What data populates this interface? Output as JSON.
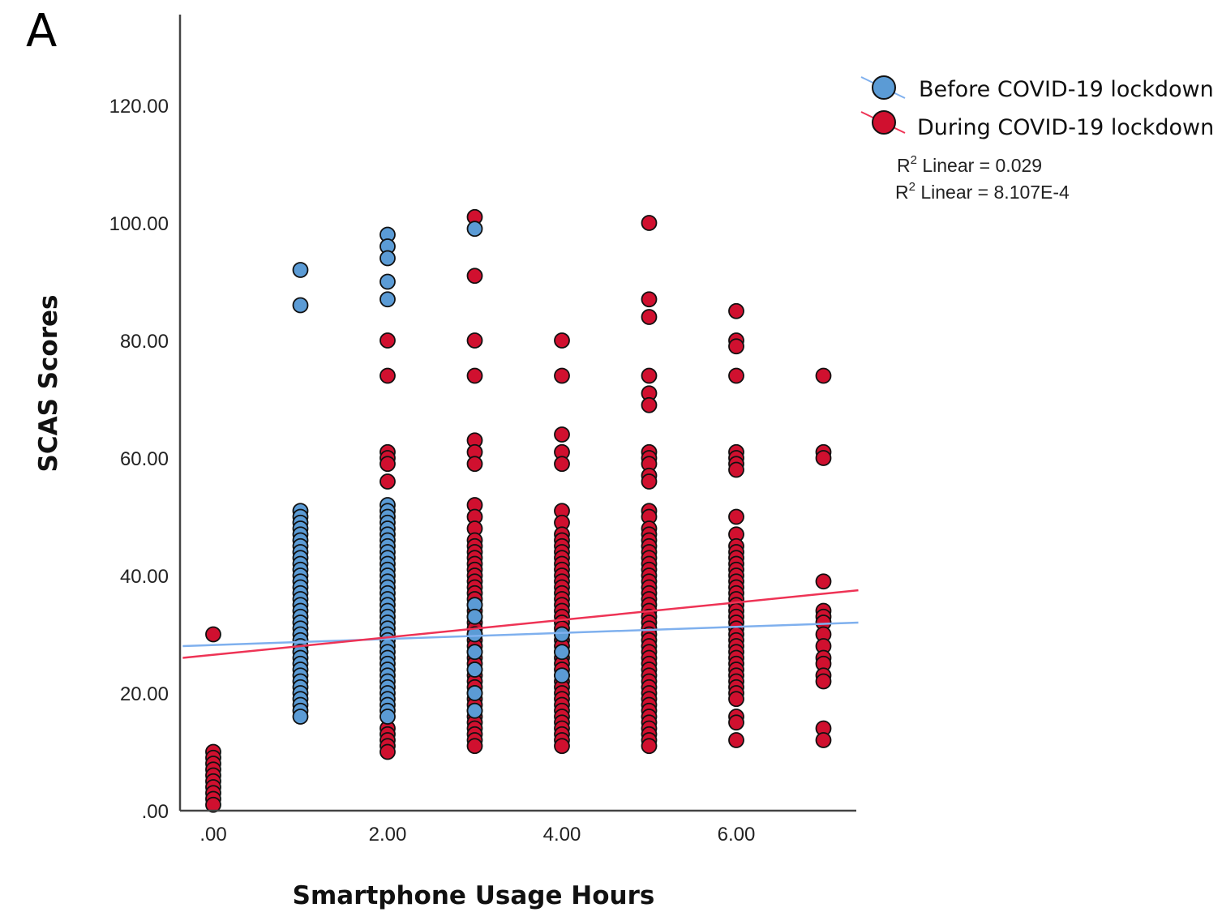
{
  "panel_label": "A",
  "colors": {
    "before": "#5b9bd5",
    "before_line": "#7fb0ee",
    "during": "#d0102f",
    "during_line": "#ee3355",
    "axis": "#444444",
    "marker_edge": "#111111"
  },
  "chart_data": {
    "type": "scatter",
    "xlabel": "Smartphone Usage Hours",
    "ylabel": "SCAS  Scores",
    "xlim": [
      -0.35,
      7.4
    ],
    "ylim": [
      0,
      130
    ],
    "x_ticks": [
      0,
      2,
      4,
      6
    ],
    "x_tick_labels": [
      ".00",
      "2.00",
      "4.00",
      "6.00"
    ],
    "y_ticks": [
      0,
      20,
      40,
      60,
      80,
      100,
      120
    ],
    "y_tick_labels": [
      ".00",
      "20.00",
      "40.00",
      "60.00",
      "80.00",
      "100.00",
      "120.00"
    ],
    "grid": false,
    "legend_position": "top-right",
    "series": [
      {
        "name": "Before COVID-19 lockdown",
        "fit_label": "R2 Linear = 0.029",
        "fit": {
          "x": [
            -0.35,
            7.4
          ],
          "y": [
            28.0,
            32.0
          ]
        },
        "points": [
          {
            "x": 1,
            "y": [
              92,
              86,
              51,
              50,
              49,
              48,
              47,
              46,
              45,
              44,
              43,
              42,
              41,
              40,
              39,
              38,
              37,
              36,
              35,
              34,
              33,
              32,
              31,
              30,
              29,
              28,
              27,
              26,
              25,
              24,
              23,
              22,
              21,
              20,
              19,
              18,
              17,
              16
            ]
          },
          {
            "x": 2,
            "y": [
              98,
              96,
              94,
              90,
              87,
              52,
              51,
              50,
              49,
              48,
              47,
              46,
              45,
              44,
              43,
              42,
              41,
              40,
              39,
              38,
              37,
              36,
              35,
              34,
              33,
              32,
              31,
              30,
              29,
              28,
              27,
              26,
              25,
              24,
              23,
              22,
              21,
              20,
              19,
              18,
              17,
              16
            ]
          },
          {
            "x": 3,
            "y": [
              99,
              35,
              33,
              30,
              27,
              24,
              20,
              17
            ]
          },
          {
            "x": 4,
            "y": [
              30,
              27,
              23
            ]
          }
        ]
      },
      {
        "name": "During COVID-19 lockdown",
        "fit_label": "R2 Linear = 8.107E-4",
        "fit": {
          "x": [
            -0.35,
            7.4
          ],
          "y": [
            26.0,
            37.5
          ]
        },
        "points": [
          {
            "x": 0,
            "y": [
              30,
              10,
              9,
              8,
              7,
              6,
              5,
              4,
              3,
              2,
              1
            ]
          },
          {
            "x": 2,
            "y": [
              80,
              74,
              61,
              60,
              59,
              56,
              14,
              13,
              12,
              11,
              10
            ]
          },
          {
            "x": 3,
            "y": [
              101,
              91,
              80,
              74,
              63,
              61,
              59,
              52,
              50,
              48,
              46,
              45,
              44,
              43,
              42,
              41,
              40,
              39,
              38,
              37,
              36,
              35,
              34,
              33,
              32,
              31,
              30,
              29,
              28,
              27,
              26,
              25,
              24,
              23,
              22,
              21,
              20,
              19,
              18,
              17,
              16,
              15,
              14,
              13,
              12,
              11
            ]
          },
          {
            "x": 4,
            "y": [
              80,
              74,
              64,
              61,
              59,
              51,
              49,
              47,
              46,
              45,
              44,
              43,
              42,
              41,
              40,
              39,
              38,
              37,
              36,
              35,
              34,
              33,
              32,
              31,
              30,
              29,
              28,
              27,
              26,
              25,
              24,
              23,
              22,
              21,
              20,
              19,
              18,
              17,
              16,
              15,
              14,
              13,
              12,
              11
            ]
          },
          {
            "x": 5,
            "y": [
              100,
              87,
              84,
              74,
              71,
              69,
              61,
              60,
              59,
              57,
              56,
              51,
              50,
              48,
              47,
              46,
              45,
              44,
              43,
              42,
              41,
              40,
              39,
              38,
              37,
              36,
              35,
              34,
              33,
              32,
              31,
              30,
              29,
              28,
              27,
              26,
              25,
              24,
              23,
              22,
              21,
              20,
              19,
              18,
              17,
              16,
              15,
              14,
              13,
              12,
              11
            ]
          },
          {
            "x": 6,
            "y": [
              85,
              80,
              79,
              74,
              61,
              60,
              59,
              58,
              50,
              47,
              45,
              44,
              43,
              42,
              41,
              40,
              39,
              38,
              37,
              36,
              35,
              34,
              33,
              32,
              31,
              30,
              29,
              28,
              27,
              26,
              25,
              24,
              23,
              22,
              21,
              20,
              19,
              16,
              15,
              12
            ]
          },
          {
            "x": 7,
            "y": [
              74,
              61,
              60,
              39,
              34,
              33,
              32,
              30,
              28,
              26,
              25,
              23,
              22,
              14,
              12
            ]
          }
        ]
      }
    ]
  }
}
